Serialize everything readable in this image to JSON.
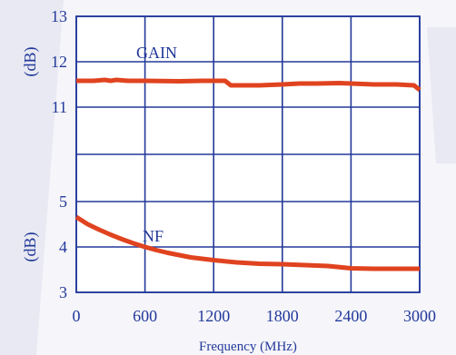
{
  "colors": {
    "background": "#f5f5fa",
    "watermark": "#e8e9f2",
    "plot_background": "#ffffff",
    "grid": "#23399a",
    "text": "#23399a",
    "series": "#e0431f"
  },
  "chart_data": [
    {
      "type": "line",
      "title": "",
      "xlabel": "Frequency (MHz)",
      "ylabel": "(dB)",
      "xlim": [
        0,
        3000
      ],
      "ylim": [
        11,
        13
      ],
      "x_ticks": [
        0,
        600,
        1200,
        1800,
        2400,
        3000
      ],
      "x_tick_labels": [
        "0",
        "600",
        "1200",
        "1800",
        "2400",
        "3000"
      ],
      "y_ticks": [
        11,
        12,
        13
      ],
      "y_tick_labels": [
        "11",
        "12",
        "13"
      ],
      "grid": true,
      "series": [
        {
          "name": "GAIN",
          "x": [
            0,
            150,
            250,
            300,
            350,
            450,
            600,
            900,
            1100,
            1200,
            1300,
            1350,
            1400,
            1600,
            1800,
            1950,
            2100,
            2300,
            2400,
            2600,
            2800,
            2950,
            3000
          ],
          "y": [
            11.58,
            11.58,
            11.6,
            11.58,
            11.6,
            11.58,
            11.58,
            11.57,
            11.58,
            11.58,
            11.58,
            11.48,
            11.48,
            11.48,
            11.5,
            11.52,
            11.52,
            11.53,
            11.52,
            11.5,
            11.5,
            11.48,
            11.38
          ]
        }
      ]
    },
    {
      "type": "line",
      "title": "",
      "xlabel": "Frequency (MHz)",
      "ylabel": "(dB)",
      "xlim": [
        0,
        3000
      ],
      "ylim": [
        3,
        5
      ],
      "x_ticks": [
        0,
        600,
        1200,
        1800,
        2400,
        3000
      ],
      "x_tick_labels": [
        "0",
        "600",
        "1200",
        "1800",
        "2400",
        "3000"
      ],
      "y_ticks": [
        3,
        4,
        5
      ],
      "y_tick_labels": [
        "3",
        "4",
        "5"
      ],
      "grid": true,
      "series": [
        {
          "name": "NF",
          "x": [
            0,
            100,
            200,
            300,
            400,
            500,
            600,
            700,
            800,
            900,
            1000,
            1200,
            1400,
            1600,
            1800,
            2000,
            2200,
            2400,
            2600,
            2800,
            3000
          ],
          "y": [
            4.66,
            4.5,
            4.38,
            4.27,
            4.17,
            4.08,
            4.0,
            3.93,
            3.87,
            3.82,
            3.77,
            3.71,
            3.66,
            3.63,
            3.62,
            3.6,
            3.58,
            3.53,
            3.52,
            3.52,
            3.52
          ]
        }
      ]
    }
  ]
}
